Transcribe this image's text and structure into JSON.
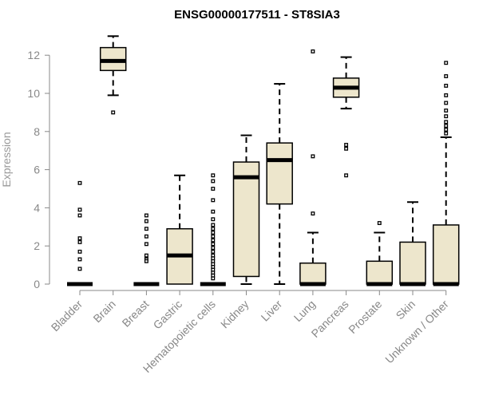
{
  "chart_data": {
    "type": "boxplot",
    "title": "ENSG00000177511 - ST8SIA3",
    "xlabel": "",
    "ylabel": "Expression",
    "ylim": [
      0,
      12.6
    ],
    "yticks": [
      0,
      2,
      4,
      6,
      8,
      10,
      12
    ],
    "box_fill": "#ede6cc",
    "categories": [
      {
        "name": "Bladder",
        "q1": 0,
        "median": 0,
        "q3": 0,
        "whisker_low": 0,
        "whisker_high": 0,
        "outliers": [
          5.3,
          3.9,
          3.6,
          2.4,
          2.2,
          1.7,
          1.3,
          0.8
        ]
      },
      {
        "name": "Brain",
        "q1": 11.2,
        "median": 11.7,
        "q3": 12.4,
        "whisker_low": 9.9,
        "whisker_high": 13.0,
        "outliers": [
          9.0
        ]
      },
      {
        "name": "Breast",
        "q1": 0,
        "median": 0,
        "q3": 0,
        "whisker_low": 0,
        "whisker_high": 0,
        "outliers": [
          3.6,
          3.3,
          2.9,
          2.5,
          2.1,
          1.5,
          1.3,
          1.2
        ]
      },
      {
        "name": "Gastric",
        "q1": 0,
        "median": 1.5,
        "q3": 2.9,
        "whisker_low": 0,
        "whisker_high": 5.7,
        "outliers": []
      },
      {
        "name": "Hematopoietic cells",
        "q1": 0,
        "median": 0,
        "q3": 0,
        "whisker_low": 0,
        "whisker_high": 0,
        "outliers": [
          5.7,
          5.4,
          5.0,
          4.4,
          3.8,
          3.4,
          3.1,
          2.9,
          2.7,
          2.5,
          2.3,
          2.1,
          1.9,
          1.7,
          1.5,
          1.35,
          1.2,
          1.05,
          0.9,
          0.75,
          0.6,
          0.45,
          0.3
        ]
      },
      {
        "name": "Kidney",
        "q1": 0.4,
        "median": 5.6,
        "q3": 6.4,
        "whisker_low": 0,
        "whisker_high": 7.8,
        "outliers": []
      },
      {
        "name": "Liver",
        "q1": 4.2,
        "median": 6.5,
        "q3": 7.4,
        "whisker_low": 0,
        "whisker_high": 10.5,
        "outliers": []
      },
      {
        "name": "Lung",
        "q1": 0,
        "median": 0,
        "q3": 1.1,
        "whisker_low": 0,
        "whisker_high": 2.7,
        "outliers": [
          12.2,
          6.7,
          3.7
        ]
      },
      {
        "name": "Pancreas",
        "q1": 9.8,
        "median": 10.3,
        "q3": 10.8,
        "whisker_low": 9.2,
        "whisker_high": 11.9,
        "outliers": [
          7.3,
          7.1,
          5.7
        ]
      },
      {
        "name": "Prostate",
        "q1": 0,
        "median": 0,
        "q3": 1.2,
        "whisker_low": 0,
        "whisker_high": 2.7,
        "outliers": [
          3.2
        ]
      },
      {
        "name": "Skin",
        "q1": 0,
        "median": 0,
        "q3": 2.2,
        "whisker_low": 0,
        "whisker_high": 4.3,
        "outliers": []
      },
      {
        "name": "Unknown / Other",
        "q1": 0,
        "median": 0,
        "q3": 3.1,
        "whisker_low": 0,
        "whisker_high": 7.7,
        "outliers": [
          11.6,
          10.9,
          10.4,
          9.9,
          9.5,
          9.1,
          8.8,
          8.5,
          8.3,
          8.1,
          7.9
        ]
      }
    ]
  }
}
